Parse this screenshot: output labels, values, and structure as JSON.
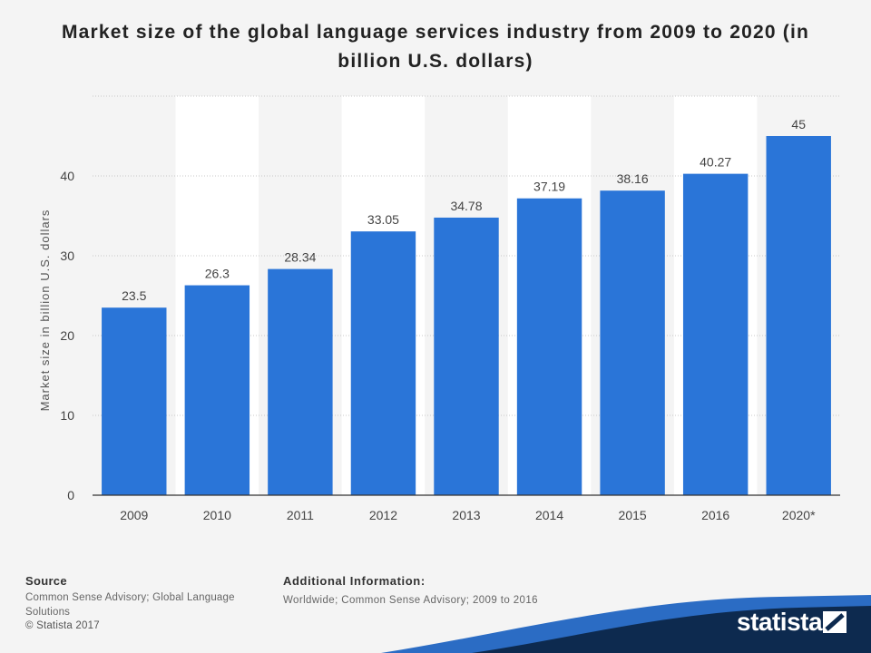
{
  "chart_data": {
    "type": "bar",
    "title": "Market size of the global language services industry from 2009 to 2020 (in billion U.S. dollars)",
    "categories": [
      "2009",
      "2010",
      "2011",
      "2012",
      "2013",
      "2014",
      "2015",
      "2016",
      "2020*"
    ],
    "values": [
      23.5,
      26.3,
      28.34,
      33.05,
      34.78,
      37.19,
      38.16,
      40.27,
      45
    ],
    "value_labels": [
      "23.5",
      "26.3",
      "28.34",
      "33.05",
      "34.78",
      "37.19",
      "38.16",
      "40.27",
      "45"
    ],
    "ylabel": "Market size in billion U.S. dollars",
    "xlabel": "",
    "ylim": [
      0,
      50
    ],
    "yticks": [
      0,
      10,
      20,
      30,
      40
    ],
    "grid": true,
    "bar_color": "#2a75d8"
  },
  "footer": {
    "source_heading": "Source",
    "source_text": "Common Sense Advisory; Global Language Solutions",
    "copyright": "© Statista 2017",
    "additional_heading": "Additional Information:",
    "additional_text": "Worldwide; Common Sense Advisory; 2009 to 2016",
    "brand": "statista"
  },
  "colors": {
    "background": "#f4f4f4",
    "band": "#ffffff",
    "footer_navy": "#0d2a4f",
    "footer_blue": "#2b6cc4"
  }
}
